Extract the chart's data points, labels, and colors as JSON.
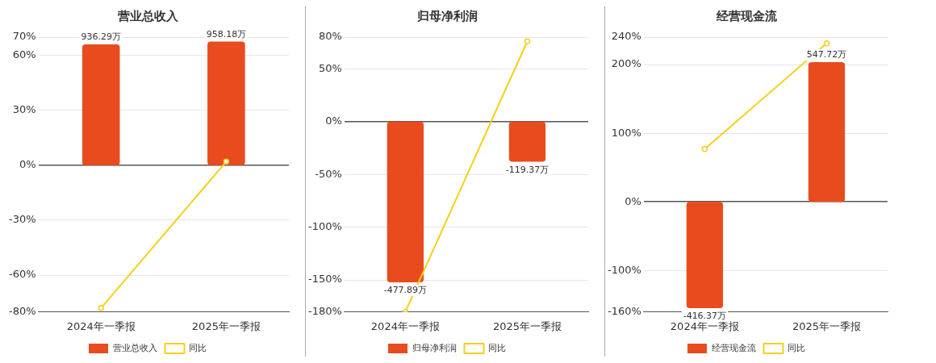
{
  "chart_data": [
    {
      "type": "bar",
      "title": "营业总收入",
      "categories": [
        "2024年一季报",
        "2025年一季报"
      ],
      "series": [
        {
          "name": "营业总收入",
          "color": "#e84c1e",
          "axis": "y2",
          "values": [
            936.29,
            958.18
          ],
          "value_labels": [
            "936.29万",
            "958.18万"
          ]
        },
        {
          "type": "line",
          "name": "同比",
          "color": "#f5d01b",
          "values": [
            -78,
            2
          ]
        }
      ],
      "ylim": [
        -80,
        70
      ],
      "yticks": [
        {
          "value": -80,
          "label": "-80%"
        },
        {
          "value": -60,
          "label": "-60%"
        },
        {
          "value": -30,
          "label": "-30%"
        },
        {
          "value": 0,
          "label": "0%"
        },
        {
          "value": 30,
          "label": "30%"
        },
        {
          "value": 60,
          "label": "60%"
        },
        {
          "value": 70,
          "label": "70%"
        }
      ],
      "y2lim": [
        -1134,
        992
      ],
      "grid": "y",
      "legend": "bottom",
      "marker": "circle"
    },
    {
      "type": "bar",
      "title": "归母净利润",
      "categories": [
        "2024年一季报",
        "2025年一季报"
      ],
      "series": [
        {
          "name": "归母净利润",
          "color": "#e84c1e",
          "axis": "y2",
          "values": [
            -477.89,
            -119.37
          ],
          "value_labels": [
            "-477.89万",
            "-119.37万"
          ]
        },
        {
          "type": "line",
          "name": "同比",
          "color": "#f5d01b",
          "values": [
            -180,
            76
          ]
        }
      ],
      "ylim": [
        -180,
        80
      ],
      "yticks": [
        {
          "value": -180,
          "label": "-180%"
        },
        {
          "value": -150,
          "label": "-150%"
        },
        {
          "value": -100,
          "label": "-100%"
        },
        {
          "value": -50,
          "label": "-50%"
        },
        {
          "value": 0,
          "label": "0%"
        },
        {
          "value": 50,
          "label": "50%"
        },
        {
          "value": 80,
          "label": "80%"
        }
      ],
      "y2lim": [
        -565,
        251
      ],
      "grid": "y",
      "legend": "bottom",
      "marker": "circle"
    },
    {
      "type": "bar",
      "title": "经营现金流",
      "categories": [
        "2024年一季报",
        "2025年一季报"
      ],
      "series": [
        {
          "name": "经营现金流",
          "color": "#e84c1e",
          "axis": "y2",
          "values": [
            -416.37,
            547.72
          ],
          "value_labels": [
            "-416.37万",
            "547.72万"
          ]
        },
        {
          "type": "line",
          "name": "同比",
          "color": "#f5d01b",
          "values": [
            77,
            231
          ]
        }
      ],
      "ylim": [
        -160,
        240
      ],
      "yticks": [
        {
          "value": -160,
          "label": "-160%"
        },
        {
          "value": -100,
          "label": "-100%"
        },
        {
          "value": 0,
          "label": "0%"
        },
        {
          "value": 100,
          "label": "100%"
        },
        {
          "value": 200,
          "label": "200%"
        },
        {
          "value": 240,
          "label": "240%"
        }
      ],
      "y2lim": [
        -430,
        646
      ],
      "grid": "y",
      "legend": "bottom",
      "marker": "circle"
    }
  ]
}
